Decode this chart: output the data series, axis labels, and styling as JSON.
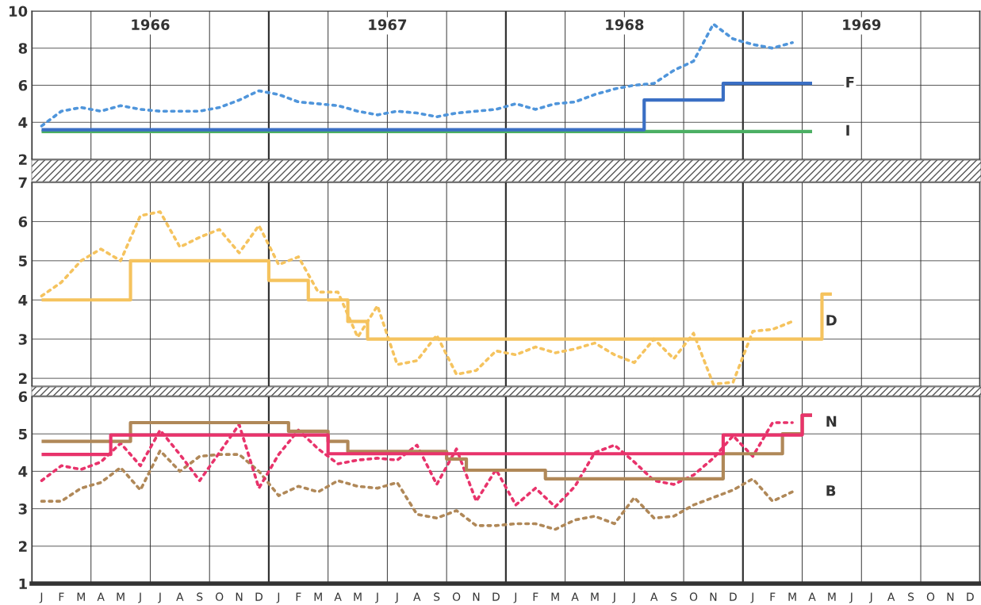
{
  "chart_data": [
    {
      "type": "line",
      "ylim": [
        2,
        10
      ],
      "yticks": [
        2,
        4,
        6,
        8,
        10
      ],
      "tick_labels": "y",
      "grid": true,
      "categories": [
        null,
        null,
        null,
        null,
        null,
        null,
        null,
        null,
        null,
        null,
        null,
        null,
        null,
        null,
        null,
        null,
        null,
        null,
        null,
        null,
        null,
        null,
        null,
        null,
        null,
        null,
        null,
        null,
        null,
        null,
        null,
        null,
        null,
        null,
        null,
        null,
        null,
        null,
        null,
        null,
        null,
        null,
        null,
        null,
        null,
        null,
        null,
        null
      ],
      "series": [
        {
          "line_style": "dotted",
          "color": "#4f95db",
          "values": [
            3.8,
            4.6,
            4.8,
            4.6,
            4.9,
            4.7,
            4.6,
            4.6,
            4.6,
            4.8,
            5.2,
            5.7,
            5.5,
            5.1,
            5.0,
            4.9,
            4.6,
            4.4,
            4.6,
            4.5,
            4.3,
            4.5,
            4.6,
            4.7,
            5.0,
            4.7,
            5.0,
            5.1,
            5.5,
            5.8,
            6.0,
            6.1,
            6.8,
            7.3,
            9.3,
            8.5,
            8.2,
            8.0,
            8.3,
            null,
            null,
            null,
            null,
            null,
            null,
            null,
            null,
            null
          ]
        },
        {
          "type": "step",
          "name": "I",
          "line_style": "solid",
          "color": "#4caf64",
          "values": [
            3.5,
            3.5,
            3.5,
            3.5,
            3.5,
            3.5,
            3.5,
            3.5,
            3.5,
            3.5,
            3.5,
            3.5,
            3.5,
            3.5,
            3.5,
            3.5,
            3.5,
            3.5,
            3.5,
            3.5,
            3.5,
            3.5,
            3.5,
            3.5,
            3.5,
            3.5,
            3.5,
            3.5,
            3.5,
            3.5,
            3.5,
            3.5,
            3.5,
            3.5,
            3.5,
            3.5,
            3.5,
            3.5,
            3.5,
            3.5,
            null,
            null,
            null,
            null,
            null,
            null,
            null,
            null
          ]
        },
        {
          "type": "step",
          "name": "F",
          "line_style": "solid",
          "color": "#3a6fc4",
          "values": [
            3.6,
            3.6,
            3.6,
            3.6,
            3.6,
            3.6,
            3.6,
            3.6,
            3.6,
            3.6,
            3.6,
            3.6,
            3.6,
            3.6,
            3.6,
            3.6,
            3.6,
            3.6,
            3.6,
            3.6,
            3.6,
            3.6,
            3.6,
            3.6,
            3.6,
            3.6,
            3.6,
            3.6,
            3.6,
            3.6,
            3.6,
            5.2,
            5.2,
            5.2,
            5.2,
            6.1,
            6.1,
            6.1,
            6.1,
            6.1,
            null,
            null,
            null,
            null,
            null,
            null,
            null,
            null
          ]
        }
      ],
      "annotations": [
        "1966",
        "1967",
        "1968",
        "1969"
      ]
    },
    {
      "type": "line",
      "ylim": [
        1.8,
        7
      ],
      "yticks": [
        2,
        3,
        4,
        5,
        6,
        7
      ],
      "tick_labels": "y",
      "grid": true,
      "categories": [
        null,
        null,
        null,
        null,
        null,
        null,
        null,
        null,
        null,
        null,
        null,
        null,
        null,
        null,
        null,
        null,
        null,
        null,
        null,
        null,
        null,
        null,
        null,
        null,
        null,
        null,
        null,
        null,
        null,
        null,
        null,
        null,
        null,
        null,
        null,
        null,
        null,
        null,
        null,
        null,
        null,
        null,
        null,
        null,
        null,
        null,
        null,
        null
      ],
      "series": [
        {
          "name": "D",
          "line_style": "dotted",
          "color": "#f5c35e",
          "values": [
            4.1,
            4.45,
            5.0,
            5.3,
            5.0,
            6.15,
            6.25,
            5.35,
            5.6,
            5.8,
            5.2,
            5.9,
            4.9,
            5.1,
            4.2,
            4.2,
            3.05,
            3.85,
            2.35,
            2.45,
            3.1,
            2.1,
            2.2,
            2.7,
            2.6,
            2.8,
            2.65,
            2.75,
            2.9,
            2.6,
            2.4,
            3.0,
            2.5,
            3.15,
            1.85,
            1.9,
            3.2,
            3.25,
            3.45,
            null,
            null,
            null,
            null,
            null,
            null,
            null,
            null,
            null
          ]
        },
        {
          "type": "step",
          "line_style": "solid",
          "color": "#f5c35e",
          "values": [
            4.0,
            4.0,
            4.0,
            4.0,
            4.0,
            5.0,
            5.0,
            5.0,
            5.0,
            5.0,
            5.0,
            5.0,
            4.5,
            4.5,
            4.0,
            4.0,
            3.45,
            3.0,
            3.0,
            3.0,
            3.0,
            3.0,
            3.0,
            3.0,
            3.0,
            3.0,
            3.0,
            3.0,
            3.0,
            3.0,
            3.0,
            3.0,
            3.0,
            3.0,
            3.0,
            3.0,
            3.0,
            3.0,
            3.0,
            3.0,
            4.15,
            null,
            null,
            null,
            null,
            null,
            null,
            null
          ]
        }
      ]
    },
    {
      "type": "line",
      "ylim": [
        1,
        6
      ],
      "yticks": [
        1,
        2,
        3,
        4,
        5,
        6
      ],
      "grid": true,
      "categories": [
        "J",
        "F",
        "M",
        "A",
        "M",
        "J",
        "J",
        "A",
        "S",
        "O",
        "N",
        "D",
        "J",
        "F",
        "M",
        "A",
        "M",
        "J",
        "J",
        "A",
        "S",
        "O",
        "N",
        "D",
        "J",
        "F",
        "M",
        "A",
        "M",
        "J",
        "J",
        "A",
        "S",
        "O",
        "N",
        "D",
        "J",
        "F",
        "M",
        "A",
        "M",
        "J",
        "J",
        "A",
        "S",
        "O",
        "N",
        "D"
      ],
      "series": [
        {
          "name": "B",
          "line_style": "dotted",
          "color": "#b08858",
          "values": [
            3.2,
            3.2,
            3.55,
            3.7,
            4.1,
            3.5,
            4.55,
            4.0,
            4.4,
            4.45,
            4.45,
            4.0,
            3.35,
            3.6,
            3.45,
            3.75,
            3.6,
            3.55,
            3.7,
            2.85,
            2.75,
            2.95,
            2.55,
            2.55,
            2.6,
            2.6,
            2.45,
            2.7,
            2.8,
            2.6,
            3.3,
            2.75,
            2.8,
            3.1,
            3.3,
            3.5,
            3.8,
            3.2,
            3.45,
            null,
            null,
            null,
            null,
            null,
            null,
            null,
            null,
            null
          ]
        },
        {
          "name": "N",
          "line_style": "dotted",
          "color": "#e8336b",
          "values": [
            3.75,
            4.15,
            4.05,
            4.25,
            4.75,
            4.15,
            5.1,
            4.45,
            3.75,
            4.5,
            5.25,
            3.55,
            4.45,
            5.1,
            4.6,
            4.2,
            4.3,
            4.35,
            4.3,
            4.7,
            3.65,
            4.6,
            3.2,
            4.05,
            3.1,
            3.55,
            3.05,
            3.6,
            4.5,
            4.7,
            4.25,
            3.75,
            3.65,
            3.9,
            4.35,
            4.95,
            4.4,
            5.3,
            5.3,
            null,
            null,
            null,
            null,
            null,
            null,
            null,
            null,
            null
          ]
        },
        {
          "type": "step",
          "line_style": "solid",
          "color": "#b08858",
          "values": [
            4.8,
            4.8,
            4.8,
            4.8,
            4.8,
            5.3,
            5.3,
            5.3,
            5.3,
            5.3,
            5.3,
            5.3,
            5.3,
            5.07,
            5.07,
            4.8,
            4.53,
            4.53,
            4.53,
            4.53,
            4.53,
            4.33,
            4.03,
            4.03,
            4.03,
            4.03,
            3.8,
            3.8,
            3.8,
            3.8,
            3.8,
            3.8,
            3.8,
            3.8,
            3.8,
            4.47,
            4.47,
            4.47,
            5.0,
            5.5,
            null,
            null,
            null,
            null,
            null,
            null,
            null,
            null
          ]
        },
        {
          "type": "step",
          "line_style": "solid",
          "color": "#e8336b",
          "values": [
            4.45,
            4.45,
            4.45,
            4.45,
            4.97,
            4.97,
            4.97,
            4.97,
            4.97,
            4.97,
            4.97,
            4.97,
            4.97,
            4.97,
            4.97,
            4.47,
            4.47,
            4.47,
            4.47,
            4.47,
            4.47,
            4.47,
            4.47,
            4.47,
            4.47,
            4.47,
            4.47,
            4.47,
            4.47,
            4.47,
            4.47,
            4.47,
            4.47,
            4.47,
            4.47,
            4.97,
            4.97,
            4.97,
            4.97,
            5.5,
            null,
            null,
            null,
            null,
            null,
            null,
            null,
            null
          ]
        }
      ]
    }
  ]
}
